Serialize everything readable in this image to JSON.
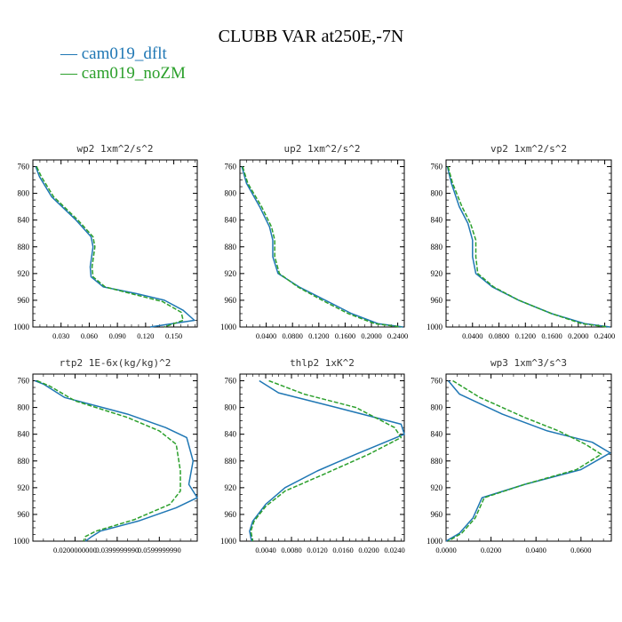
{
  "figure": {
    "title": "CLUBB VAR at250E,-7N",
    "legend": [
      {
        "label": "— cam019_dflt",
        "color": "#1f77b4"
      },
      {
        "label": "— cam019_noZM",
        "color": "#2ca02c"
      }
    ]
  },
  "chart_data": [
    {
      "type": "line",
      "title": "wp2   1xm^2/s^2",
      "ylim": [
        1000,
        750
      ],
      "xlim": [
        0.0,
        0.175
      ],
      "yticks": [
        760,
        800,
        840,
        880,
        920,
        960,
        1000
      ],
      "xticks": [
        0.03,
        0.06,
        0.09,
        0.12,
        0.15
      ],
      "xtick_labels": [
        "0.030",
        "0.060",
        "0.090",
        "0.120",
        "0.150"
      ],
      "series": [
        {
          "name": "cam019_dflt",
          "color": "#1f77b4",
          "dashed": false,
          "points": [
            [
              0.003,
              760
            ],
            [
              0.007,
              775
            ],
            [
              0.02,
              805
            ],
            [
              0.046,
              840
            ],
            [
              0.062,
              865
            ],
            [
              0.064,
              880
            ],
            [
              0.061,
              910
            ],
            [
              0.062,
              925
            ],
            [
              0.075,
              940
            ],
            [
              0.11,
              950
            ],
            [
              0.14,
              960
            ],
            [
              0.16,
              975
            ],
            [
              0.172,
              990
            ],
            [
              0.125,
              1000
            ]
          ]
        },
        {
          "name": "cam019_noZM",
          "color": "#2ca02c",
          "dashed": true,
          "points": [
            [
              0.004,
              760
            ],
            [
              0.009,
              775
            ],
            [
              0.022,
              805
            ],
            [
              0.048,
              840
            ],
            [
              0.064,
              865
            ],
            [
              0.066,
              880
            ],
            [
              0.063,
              910
            ],
            [
              0.064,
              925
            ],
            [
              0.077,
              940
            ],
            [
              0.11,
              952
            ],
            [
              0.138,
              962
            ],
            [
              0.158,
              978
            ],
            [
              0.16,
              990
            ],
            [
              0.14,
              1000
            ]
          ]
        }
      ]
    },
    {
      "type": "line",
      "title": "up2   1xm^2/s^2",
      "ylim": [
        1000,
        750
      ],
      "xlim": [
        0.0,
        0.25
      ],
      "yticks": [
        760,
        800,
        840,
        880,
        920,
        960,
        1000
      ],
      "xticks": [
        0.04,
        0.08,
        0.12,
        0.16,
        0.2,
        0.24
      ],
      "xtick_labels": [
        "0.0400",
        "0.0800",
        "0.1200",
        "0.1600",
        "0.2000",
        "0.2400"
      ],
      "series": [
        {
          "name": "cam019_dflt",
          "color": "#1f77b4",
          "dashed": false,
          "points": [
            [
              0.003,
              760
            ],
            [
              0.01,
              785
            ],
            [
              0.03,
              820
            ],
            [
              0.045,
              850
            ],
            [
              0.05,
              870
            ],
            [
              0.05,
              895
            ],
            [
              0.058,
              920
            ],
            [
              0.09,
              940
            ],
            [
              0.13,
              960
            ],
            [
              0.17,
              980
            ],
            [
              0.21,
              995
            ],
            [
              0.248,
              1000
            ]
          ]
        },
        {
          "name": "cam019_noZM",
          "color": "#2ca02c",
          "dashed": true,
          "points": [
            [
              0.004,
              760
            ],
            [
              0.012,
              785
            ],
            [
              0.033,
              820
            ],
            [
              0.048,
              850
            ],
            [
              0.053,
              870
            ],
            [
              0.053,
              895
            ],
            [
              0.06,
              920
            ],
            [
              0.088,
              940
            ],
            [
              0.125,
              960
            ],
            [
              0.165,
              980
            ],
            [
              0.205,
              995
            ],
            [
              0.245,
              1000
            ]
          ]
        }
      ]
    },
    {
      "type": "line",
      "title": "vp2   1xm^2/s^2",
      "ylim": [
        1000,
        750
      ],
      "xlim": [
        0.0,
        0.25
      ],
      "yticks": [
        760,
        800,
        840,
        880,
        920,
        960,
        1000
      ],
      "xticks": [
        0.04,
        0.08,
        0.12,
        0.16,
        0.2,
        0.24
      ],
      "xtick_labels": [
        "0.0400",
        "0.0800",
        "0.1200",
        "0.1600",
        "0.2000",
        "0.2400"
      ],
      "series": [
        {
          "name": "cam019_dflt",
          "color": "#1f77b4",
          "dashed": false,
          "points": [
            [
              0.002,
              760
            ],
            [
              0.008,
              785
            ],
            [
              0.02,
              820
            ],
            [
              0.033,
              845
            ],
            [
              0.04,
              870
            ],
            [
              0.04,
              895
            ],
            [
              0.045,
              920
            ],
            [
              0.07,
              940
            ],
            [
              0.11,
              960
            ],
            [
              0.16,
              980
            ],
            [
              0.21,
              995
            ],
            [
              0.248,
              1000
            ]
          ]
        },
        {
          "name": "cam019_noZM",
          "color": "#2ca02c",
          "dashed": true,
          "points": [
            [
              0.003,
              760
            ],
            [
              0.01,
              785
            ],
            [
              0.024,
              820
            ],
            [
              0.037,
              845
            ],
            [
              0.045,
              870
            ],
            [
              0.045,
              895
            ],
            [
              0.048,
              920
            ],
            [
              0.072,
              940
            ],
            [
              0.11,
              960
            ],
            [
              0.16,
              980
            ],
            [
              0.205,
              995
            ],
            [
              0.245,
              1000
            ]
          ]
        }
      ]
    },
    {
      "type": "line",
      "title": "rtp2   1E-6x(kg/kg)^2",
      "ylim": [
        1000,
        750
      ],
      "xlim": [
        0.0,
        0.078
      ],
      "yticks": [
        760,
        800,
        840,
        880,
        920,
        960,
        1000
      ],
      "xticks": [
        0.02,
        0.04,
        0.06
      ],
      "xtick_labels": [
        "0.0200000000",
        "0.0399999990",
        "0.0599999990"
      ],
      "series": [
        {
          "name": "cam019_dflt",
          "color": "#1f77b4",
          "dashed": false,
          "points": [
            [
              0.001,
              760
            ],
            [
              0.005,
              765
            ],
            [
              0.015,
              785
            ],
            [
              0.045,
              810
            ],
            [
              0.063,
              830
            ],
            [
              0.073,
              845
            ],
            [
              0.076,
              880
            ],
            [
              0.074,
              915
            ],
            [
              0.078,
              935
            ],
            [
              0.068,
              950
            ],
            [
              0.05,
              970
            ],
            [
              0.032,
              985
            ],
            [
              0.028,
              993
            ],
            [
              0.025,
              1000
            ]
          ]
        },
        {
          "name": "cam019_noZM",
          "color": "#2ca02c",
          "dashed": true,
          "points": [
            [
              0.002,
              760
            ],
            [
              0.008,
              768
            ],
            [
              0.02,
              790
            ],
            [
              0.045,
              815
            ],
            [
              0.06,
              835
            ],
            [
              0.068,
              855
            ],
            [
              0.07,
              895
            ],
            [
              0.07,
              925
            ],
            [
              0.065,
              945
            ],
            [
              0.048,
              968
            ],
            [
              0.03,
              985
            ],
            [
              0.025,
              993
            ],
            [
              0.024,
              1000
            ]
          ]
        }
      ]
    },
    {
      "type": "line",
      "title": "thlp2   1xK^2",
      "ylim": [
        1000,
        750
      ],
      "xlim": [
        0.0,
        0.0255
      ],
      "yticks": [
        760,
        800,
        840,
        880,
        920,
        960,
        1000
      ],
      "xticks": [
        0.004,
        0.008,
        0.012,
        0.016,
        0.02,
        0.024
      ],
      "xtick_labels": [
        "0.0040",
        "0.0080",
        "0.0120",
        "0.0160",
        "0.0200",
        "0.0240"
      ],
      "series": [
        {
          "name": "cam019_dflt",
          "color": "#1f77b4",
          "dashed": false,
          "points": [
            [
              0.003,
              760
            ],
            [
              0.006,
              778
            ],
            [
              0.015,
              800
            ],
            [
              0.025,
              825
            ],
            [
              0.0255,
              840
            ],
            [
              0.018,
              870
            ],
            [
              0.012,
              895
            ],
            [
              0.007,
              920
            ],
            [
              0.004,
              945
            ],
            [
              0.002,
              970
            ],
            [
              0.0015,
              985
            ],
            [
              0.0018,
              1000
            ]
          ]
        },
        {
          "name": "cam019_noZM",
          "color": "#2ca02c",
          "dashed": true,
          "points": [
            [
              0.0045,
              760
            ],
            [
              0.01,
              780
            ],
            [
              0.018,
              800
            ],
            [
              0.024,
              830
            ],
            [
              0.025,
              845
            ],
            [
              0.02,
              870
            ],
            [
              0.013,
              900
            ],
            [
              0.007,
              925
            ],
            [
              0.004,
              948
            ],
            [
              0.0022,
              970
            ],
            [
              0.0017,
              985
            ],
            [
              0.002,
              1000
            ]
          ]
        }
      ]
    },
    {
      "type": "line",
      "title": "wp3   1xm^3/s^3",
      "ylim": [
        1000,
        750
      ],
      "xlim": [
        0.0,
        0.0735
      ],
      "yticks": [
        760,
        800,
        840,
        880,
        920,
        960,
        1000
      ],
      "xticks": [
        0.0,
        0.02,
        0.04,
        0.06
      ],
      "xtick_labels": [
        "0.0000",
        "0.0200",
        "0.0400",
        "0.0600"
      ],
      "series": [
        {
          "name": "cam019_dflt",
          "color": "#1f77b4",
          "dashed": false,
          "points": [
            [
              0.001,
              760
            ],
            [
              0.006,
              780
            ],
            [
              0.025,
              810
            ],
            [
              0.045,
              835
            ],
            [
              0.065,
              852
            ],
            [
              0.073,
              868
            ],
            [
              0.06,
              893
            ],
            [
              0.035,
              915
            ],
            [
              0.016,
              935
            ],
            [
              0.012,
              965
            ],
            [
              0.006,
              988
            ],
            [
              0.0,
              1000
            ]
          ]
        },
        {
          "name": "cam019_noZM",
          "color": "#2ca02c",
          "dashed": true,
          "points": [
            [
              0.003,
              760
            ],
            [
              0.015,
              785
            ],
            [
              0.035,
              815
            ],
            [
              0.05,
              835
            ],
            [
              0.062,
              855
            ],
            [
              0.069,
              870
            ],
            [
              0.058,
              893
            ],
            [
              0.035,
              915
            ],
            [
              0.017,
              935
            ],
            [
              0.013,
              965
            ],
            [
              0.007,
              988
            ],
            [
              0.001,
              1000
            ]
          ]
        }
      ]
    }
  ]
}
